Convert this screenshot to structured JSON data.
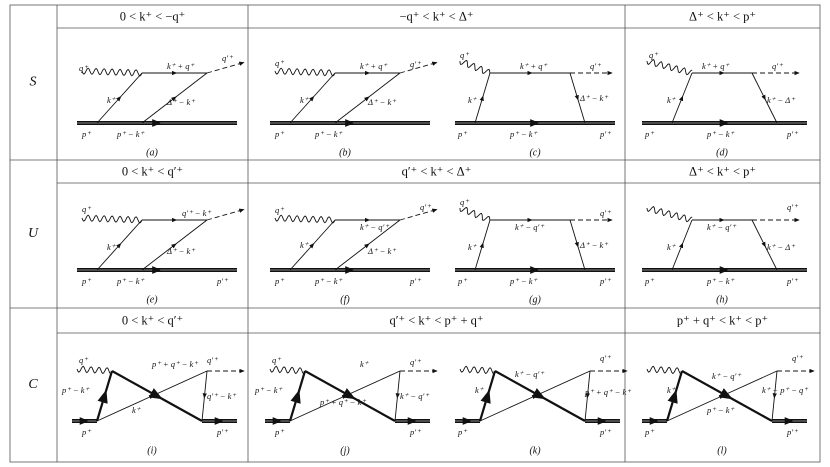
{
  "rows": [
    {
      "label": "S",
      "headers": [
        "0 < k⁺ < −q⁺",
        "−q⁺ < k⁺ < Δ⁺",
        "Δ⁺ < k⁺ < p⁺"
      ],
      "diagrams": [
        {
          "labels": [
            "q⁺",
            "q′⁺",
            "k⁺ + q⁺",
            "k⁺",
            "Δ⁺ − k⁺",
            "p⁺",
            "p⁺ − k⁺"
          ],
          "caption": "(a)"
        },
        {
          "labels": [
            "q⁺",
            "k⁺ + q⁺",
            "q′⁺",
            "k⁺",
            "Δ⁺ − k⁺",
            "p⁺",
            "p⁺ − k⁺"
          ],
          "caption": "(b)"
        },
        {
          "labels": [
            "q⁺",
            "k⁺ + q⁺",
            "q′⁺",
            "k⁺",
            "Δ⁺ − k⁺",
            "p⁺",
            "p⁺ − k⁺",
            "p′⁺"
          ],
          "caption": "(c)"
        },
        {
          "labels": [
            "q⁺",
            "k⁺ + q⁺",
            "q′⁺",
            "k⁺",
            "k⁺ − Δ⁺",
            "p⁺",
            "p⁺ − k⁺",
            "p′⁺"
          ],
          "caption": "(d)"
        }
      ]
    },
    {
      "label": "U",
      "headers": [
        "0 < k⁺ < q′⁺",
        "q′⁺ < k⁺ < Δ⁺",
        "Δ⁺ < k⁺ < p⁺"
      ],
      "diagrams": [
        {
          "labels": [
            "q⁺",
            "q′⁺ − k⁺",
            "k⁺",
            "Δ⁺ − k⁺",
            "p⁺",
            "p⁺ − k⁺",
            "p′⁺"
          ],
          "caption": "(e)"
        },
        {
          "labels": [
            "q⁺",
            "q′⁺",
            "k⁺",
            "k⁺ − q′⁺",
            "Δ⁺ − k⁺",
            "p⁺",
            "p⁺ − k⁺",
            "p′⁺"
          ],
          "caption": "(f)"
        },
        {
          "labels": [
            "q⁺",
            "q′⁺",
            "k⁺ − q′⁺",
            "k⁺",
            "Δ⁺ − k⁺",
            "p⁺",
            "p⁺ − k⁺",
            "p′⁺"
          ],
          "caption": "(g)"
        },
        {
          "labels": [
            "q′⁺",
            "k⁺ − q′⁺",
            "k⁺",
            "k⁺ − Δ⁺",
            "p⁺",
            "p⁺ − k⁺",
            "p′⁺"
          ],
          "caption": "(h)"
        }
      ]
    },
    {
      "label": "C",
      "headers": [
        "0 < k⁺ < q′⁺",
        "q′⁺ < k⁺ < p⁺ + q⁺",
        "p⁺ + q⁺ < k⁺ < p⁺"
      ],
      "diagrams": [
        {
          "labels": [
            "q⁺",
            "p⁺ + q⁺ − k⁺",
            "q′⁺",
            "p⁺ − k⁺",
            "q′⁺ − k⁺",
            "k⁺",
            "p⁺",
            "p′⁺"
          ],
          "caption": "(i)"
        },
        {
          "labels": [
            "q⁺",
            "k⁺",
            "q′⁺",
            "p⁺ − k⁺",
            "p⁺ + q⁺ − k⁺",
            "k⁺ − q′⁺",
            "p⁺",
            "p′⁺"
          ],
          "caption": "(j)"
        },
        {
          "labels": [
            "k⁺ − q′⁺",
            "q′⁺",
            "k⁺",
            "p⁺ + q⁺ − k⁺",
            "p⁺",
            "p′⁺"
          ],
          "caption": "(k)"
        },
        {
          "labels": [
            "k⁺ − q′⁺",
            "q′⁺",
            "k⁺",
            "p⁺ − k⁺",
            "k⁺ − p⁺ − q⁺",
            "p⁺",
            "p′⁺"
          ],
          "caption": "(l)"
        }
      ]
    }
  ]
}
